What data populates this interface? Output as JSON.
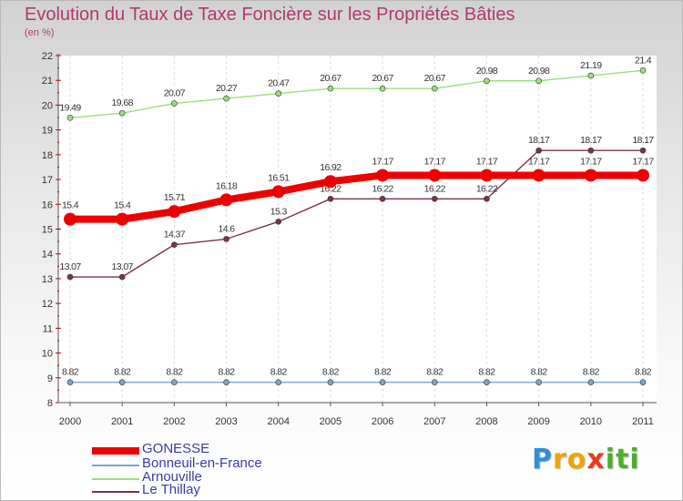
{
  "chart_data": {
    "type": "line",
    "title": "Evolution du Taux de Taxe Foncière sur les Propriétés Bâties",
    "ylabel": "(en %)",
    "xlabel": "",
    "x": [
      "2000",
      "2001",
      "2002",
      "2003",
      "2004",
      "2005",
      "2006",
      "2007",
      "2008",
      "2009",
      "2010",
      "2011"
    ],
    "y_ticks": [
      "8",
      "9",
      "10",
      "11",
      "12",
      "13",
      "14",
      "15",
      "16",
      "17",
      "18",
      "19",
      "20",
      "21",
      "22"
    ],
    "ylim": [
      8,
      22
    ],
    "grid": true,
    "series": [
      {
        "name": "Arnouville",
        "color": "#99e07a",
        "values": [
          19.49,
          19.68,
          20.07,
          20.27,
          20.47,
          20.67,
          20.67,
          20.67,
          20.98,
          20.98,
          21.19,
          21.4
        ],
        "labels": [
          "19.49",
          "19.68",
          "20.07",
          "20.27",
          "20.47",
          "20.67",
          "20.67",
          "20.67",
          "20.98",
          "20.98",
          "21.19",
          "21.4"
        ]
      },
      {
        "name": "Le Thillay",
        "color": "#7a3540",
        "values": [
          13.07,
          13.07,
          14.37,
          14.6,
          15.3,
          16.22,
          16.22,
          16.22,
          16.22,
          18.17,
          18.17,
          18.17
        ],
        "labels": [
          "13.07",
          "13.07",
          "14.37",
          "14.6",
          "15.3",
          "16.22",
          "16.22",
          "16.22",
          "16.22",
          "18.17",
          "18.17",
          "18.17"
        ]
      },
      {
        "name": "GONESSE",
        "color": "#ee0000",
        "values": [
          15.4,
          15.4,
          15.71,
          16.18,
          16.51,
          16.92,
          17.17,
          17.17,
          17.17,
          17.17,
          17.17,
          17.17
        ],
        "labels": [
          "15.4",
          "15.4",
          "15.71",
          "16.18",
          "16.51",
          "16.92",
          "17.17",
          "17.17",
          "17.17",
          "17.17",
          "17.17",
          "17.17"
        ]
      },
      {
        "name": "Bonneuil-en-France",
        "color": "#7aa6cc",
        "values": [
          8.82,
          8.82,
          8.82,
          8.82,
          8.82,
          8.82,
          8.82,
          8.82,
          8.82,
          8.82,
          8.82,
          8.82
        ],
        "labels": [
          "8.82",
          "8.82",
          "8.82",
          "8.82",
          "8.82",
          "8.82",
          "8.82",
          "8.82",
          "8.82",
          "8.82",
          "8.82",
          "8.82"
        ]
      }
    ]
  },
  "legend": {
    "items": [
      {
        "name": "GONESSE",
        "color": "#ee0000"
      },
      {
        "name": "Bonneuil-en-France",
        "color": "#7aa6cc"
      },
      {
        "name": "Arnouville",
        "color": "#99e07a"
      },
      {
        "name": "Le Thillay",
        "color": "#7a3540"
      }
    ]
  },
  "logo": {
    "text": "Proxiti",
    "letters": [
      {
        "ch": "P",
        "color": "#2f8fd8"
      },
      {
        "ch": "r",
        "color": "#f0a400"
      },
      {
        "ch": "o",
        "color": "#f0a400"
      },
      {
        "ch": "x",
        "color": "#e83c1e"
      },
      {
        "ch": "i",
        "color": "#4cae2e"
      },
      {
        "ch": "t",
        "color": "#4cae2e"
      },
      {
        "ch": "i",
        "color": "#4cae2e"
      }
    ]
  }
}
